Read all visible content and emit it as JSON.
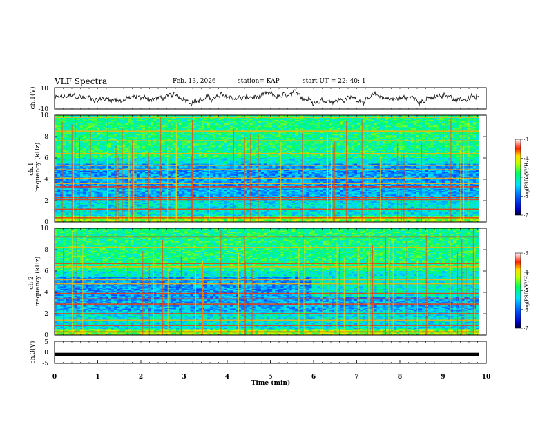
{
  "header": {
    "title": "VLF Spectra",
    "date": "Feb. 13, 2026",
    "station": "station= KAP",
    "start_ut": "start  UT  =   22: 40: 1"
  },
  "chart_data": [
    {
      "type": "line",
      "panel": "top",
      "ylabel": "ch.1(V)",
      "ytick_labels": [
        "10",
        "-10"
      ],
      "ylim": [
        -10,
        10
      ],
      "xlim": [
        0,
        10
      ]
    },
    {
      "type": "heatmap",
      "panel": "spectrogram-1",
      "ylabel_line1": "ch.1",
      "ylabel_line2": "Frequency (kHz)",
      "ylim": [
        0,
        10
      ],
      "ytick_labels": [
        "0",
        "2",
        "4",
        "6",
        "8",
        "10"
      ],
      "xlim": [
        0,
        10
      ],
      "colorbar": {
        "label": "log(PSD)(V²/Hz)",
        "range": [
          -7,
          -3
        ],
        "tick_labels": [
          "-3",
          "-4",
          "-5",
          "-6",
          "-7"
        ]
      }
    },
    {
      "type": "heatmap",
      "panel": "spectrogram-2",
      "ylabel_line1": "ch.2",
      "ylabel_line2": "Frequency (kHz)",
      "ylim": [
        0,
        10
      ],
      "ytick_labels": [
        "0",
        "2",
        "4",
        "6",
        "8",
        "10"
      ],
      "xlim": [
        0,
        10
      ],
      "colorbar": {
        "label": "log(PSD)(V²/Hz)",
        "range": [
          -7,
          -3
        ],
        "tick_labels": [
          "-3",
          "-4",
          "-5",
          "-6",
          "-7"
        ]
      }
    },
    {
      "type": "line",
      "panel": "bottom",
      "ylabel": "ch.3(V)",
      "ytick_labels": [
        "5",
        "0",
        "-5"
      ],
      "ylim": [
        -5,
        5
      ],
      "value": -1,
      "xlim": [
        0,
        10
      ]
    }
  ],
  "xaxis": {
    "label": "Time (min)",
    "tick_labels": [
      "0",
      "1",
      "2",
      "3",
      "4",
      "5",
      "6",
      "7",
      "8",
      "9",
      "10"
    ]
  }
}
